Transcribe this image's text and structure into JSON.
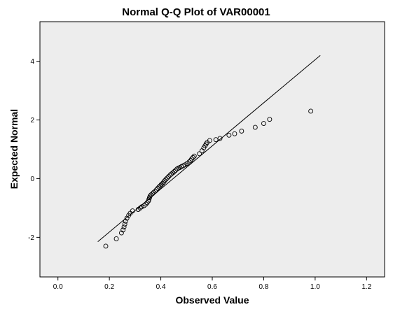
{
  "chart_data": {
    "type": "scatter",
    "title": "Normal Q-Q Plot of VAR00001",
    "xlabel": "Observed Value",
    "ylabel": "Expected Normal",
    "xlim": [
      -0.07,
      1.27
    ],
    "ylim": [
      -3.35,
      5.35
    ],
    "xticks": [
      0.0,
      0.2,
      0.4,
      0.6,
      0.8,
      1.0,
      1.2
    ],
    "xtick_labels": [
      "0.0",
      "0.2",
      "0.4",
      "0.6",
      "0.8",
      "1.0",
      "1.2"
    ],
    "yticks": [
      -2,
      0,
      2,
      4
    ],
    "ytick_labels": [
      "-2",
      "0",
      "2",
      "4"
    ],
    "grid": false,
    "background": "#ededed",
    "marker": "open-circle",
    "reference_line": {
      "x": [
        0.155,
        1.02
      ],
      "y": [
        -2.15,
        4.2
      ]
    },
    "x": [
      0.186,
      0.227,
      0.247,
      0.253,
      0.257,
      0.26,
      0.263,
      0.268,
      0.275,
      0.281,
      0.29,
      0.312,
      0.32,
      0.326,
      0.335,
      0.342,
      0.347,
      0.352,
      0.354,
      0.356,
      0.358,
      0.362,
      0.368,
      0.372,
      0.378,
      0.383,
      0.388,
      0.393,
      0.398,
      0.402,
      0.407,
      0.411,
      0.415,
      0.42,
      0.425,
      0.43,
      0.436,
      0.441,
      0.447,
      0.452,
      0.457,
      0.463,
      0.469,
      0.474,
      0.48,
      0.487,
      0.494,
      0.502,
      0.51,
      0.516,
      0.52,
      0.525,
      0.53,
      0.55,
      0.56,
      0.567,
      0.572,
      0.576,
      0.58,
      0.59,
      0.614,
      0.63,
      0.665,
      0.687,
      0.714,
      0.767,
      0.8,
      0.823,
      0.983
    ],
    "y": [
      -2.3,
      -2.05,
      -1.85,
      -1.75,
      -1.65,
      -1.55,
      -1.45,
      -1.35,
      -1.25,
      -1.18,
      -1.1,
      -1.05,
      -1.0,
      -0.96,
      -0.92,
      -0.87,
      -0.82,
      -0.76,
      -0.7,
      -0.65,
      -0.6,
      -0.55,
      -0.51,
      -0.47,
      -0.43,
      -0.38,
      -0.33,
      -0.28,
      -0.24,
      -0.2,
      -0.16,
      -0.12,
      -0.07,
      -0.02,
      0.02,
      0.07,
      0.12,
      0.16,
      0.2,
      0.24,
      0.28,
      0.33,
      0.36,
      0.38,
      0.41,
      0.44,
      0.47,
      0.52,
      0.57,
      0.62,
      0.67,
      0.72,
      0.77,
      0.85,
      0.95,
      1.05,
      1.12,
      1.18,
      1.23,
      1.3,
      1.33,
      1.37,
      1.48,
      1.53,
      1.62,
      1.75,
      1.88,
      2.02,
      2.3
    ]
  }
}
